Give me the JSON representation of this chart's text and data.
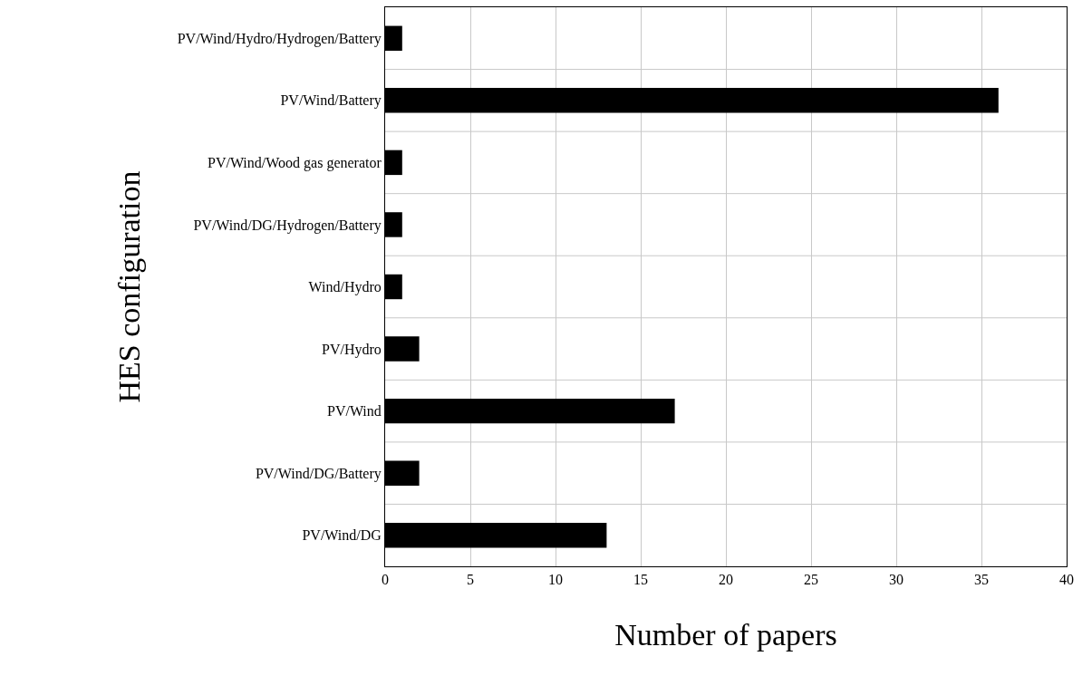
{
  "chart_data": {
    "type": "bar",
    "orientation": "horizontal",
    "xlabel": "Number of papers",
    "ylabel": "HES configuration",
    "categories": [
      "PV/Wind/Hydro/Hydrogen/Battery",
      "PV/Wind/Battery",
      "PV/Wind/Wood gas generator",
      "PV/Wind/DG/Hydrogen/Battery",
      "Wind/Hydro",
      "PV/Hydro",
      "PV/Wind",
      "PV/Wind/DG/Battery",
      "PV/Wind/DG"
    ],
    "values": [
      1,
      36,
      1,
      1,
      1,
      2,
      17,
      2,
      13
    ],
    "color": "#000000",
    "xlim": [
      0,
      40
    ],
    "xticks": [
      0,
      5,
      10,
      15,
      20,
      25,
      30,
      35,
      40
    ],
    "grid": true
  }
}
